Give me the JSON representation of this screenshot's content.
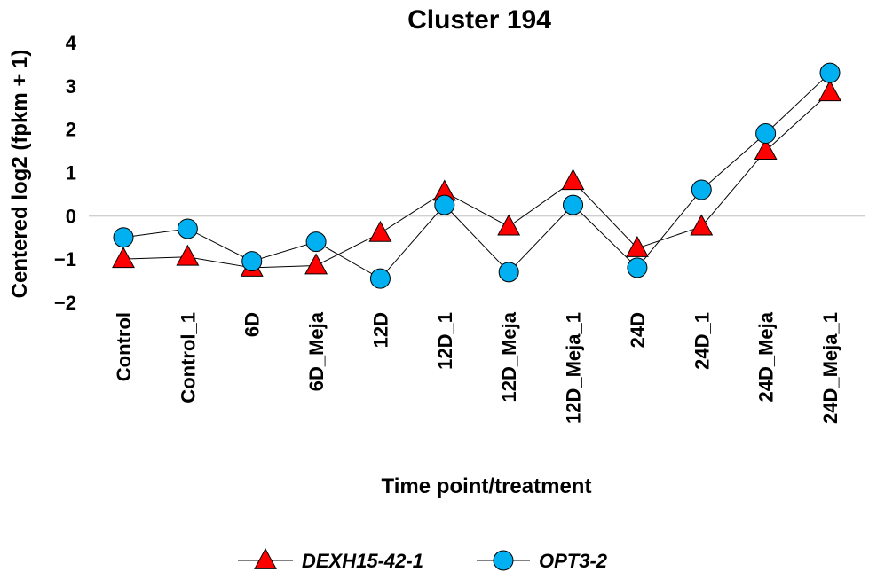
{
  "chart_data": {
    "type": "line",
    "title": "Cluster 194",
    "xlabel": "Time point/treatment",
    "ylabel": "Centered log2 (fpkm + 1)",
    "ylim": [
      -2,
      4
    ],
    "yticks": [
      "4",
      "3",
      "2",
      "1",
      "0",
      "−1",
      "−2"
    ],
    "ytick_values": [
      4,
      3,
      2,
      1,
      0,
      -1,
      -2
    ],
    "categories": [
      "Control",
      "Control_1",
      "6D",
      "6D_Meja",
      "12D",
      "12D_1",
      "12D_Meja",
      "12D_Meja_1",
      "24D",
      "24D_1",
      "24D_Meja",
      "24D_Meja_1"
    ],
    "grid": false,
    "zero_line": true,
    "legend_position": "bottom",
    "series": [
      {
        "name": "DEXH15-42-1",
        "marker": "triangle",
        "color": "#ff0000",
        "values": [
          -1.0,
          -0.95,
          -1.2,
          -1.15,
          -0.4,
          0.55,
          -0.25,
          0.8,
          -0.75,
          -0.25,
          1.5,
          2.85
        ]
      },
      {
        "name": "OPT3-2",
        "marker": "circle",
        "color": "#00b0f0",
        "values": [
          -0.5,
          -0.3,
          -1.05,
          -0.6,
          -1.45,
          0.25,
          -1.3,
          0.25,
          -1.2,
          0.6,
          1.9,
          3.3
        ]
      }
    ]
  }
}
